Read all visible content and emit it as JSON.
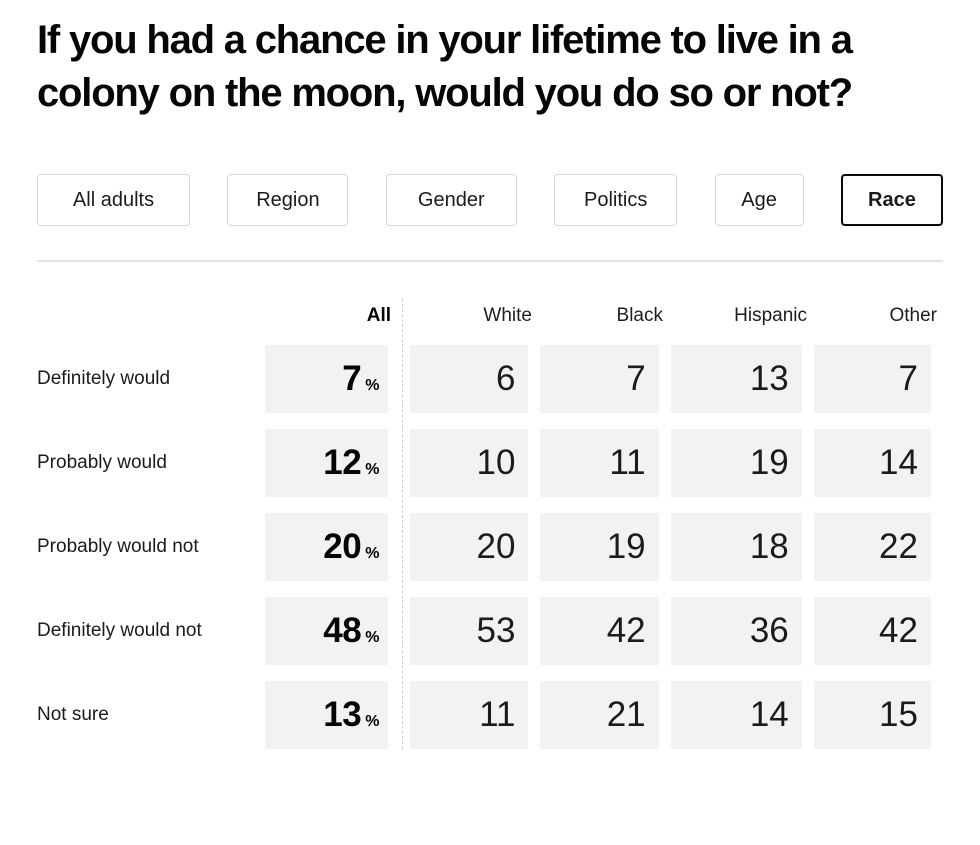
{
  "title": "If you had a chance in your lifetime to live in a colony on the moon, would you do so or not?",
  "filters": [
    {
      "label": "All adults",
      "selected": false
    },
    {
      "label": "Region",
      "selected": false
    },
    {
      "label": "Gender",
      "selected": false
    },
    {
      "label": "Politics",
      "selected": false
    },
    {
      "label": "Age",
      "selected": false
    },
    {
      "label": "Race",
      "selected": true
    }
  ],
  "table": {
    "all_column": "All",
    "demo_columns": [
      "White",
      "Black",
      "Hispanic",
      "Other"
    ],
    "percent_sign": "%",
    "rows": [
      {
        "label": "Definitely would",
        "all": "7",
        "values": [
          "6",
          "7",
          "13",
          "7"
        ]
      },
      {
        "label": "Probably would",
        "all": "12",
        "values": [
          "10",
          "11",
          "19",
          "14"
        ]
      },
      {
        "label": "Probably would not",
        "all": "20",
        "values": [
          "20",
          "19",
          "18",
          "22"
        ]
      },
      {
        "label": "Definitely would not",
        "all": "48",
        "values": [
          "53",
          "42",
          "36",
          "42"
        ]
      },
      {
        "label": "Not sure",
        "all": "13",
        "values": [
          "11",
          "21",
          "14",
          "15"
        ]
      }
    ]
  },
  "chart_data": {
    "type": "table",
    "title": "If you had a chance in your lifetime to live in a colony on the moon, would you do so or not?",
    "row_categories": [
      "Definitely would",
      "Probably would",
      "Probably would not",
      "Definitely would not",
      "Not sure"
    ],
    "columns": [
      "All",
      "White",
      "Black",
      "Hispanic",
      "Other"
    ],
    "series": [
      {
        "name": "All",
        "unit": "%",
        "values": [
          7,
          12,
          20,
          48,
          13
        ]
      },
      {
        "name": "White",
        "values": [
          6,
          10,
          20,
          53,
          11
        ]
      },
      {
        "name": "Black",
        "values": [
          7,
          11,
          19,
          42,
          21
        ]
      },
      {
        "name": "Hispanic",
        "values": [
          13,
          19,
          18,
          36,
          14
        ]
      },
      {
        "name": "Other",
        "values": [
          7,
          14,
          22,
          42,
          15
        ]
      }
    ],
    "breakdown_options": [
      "All adults",
      "Region",
      "Gender",
      "Politics",
      "Age",
      "Race"
    ],
    "selected_breakdown": "Race"
  },
  "colors": {
    "cell_background": "#f2f2f4",
    "button_border": "#d8d8dc",
    "selected_button_border": "#0b0b0b",
    "divider": "#e3e3e5",
    "dashed_divider": "#cdcdd2",
    "text": "#1b1b1b"
  }
}
